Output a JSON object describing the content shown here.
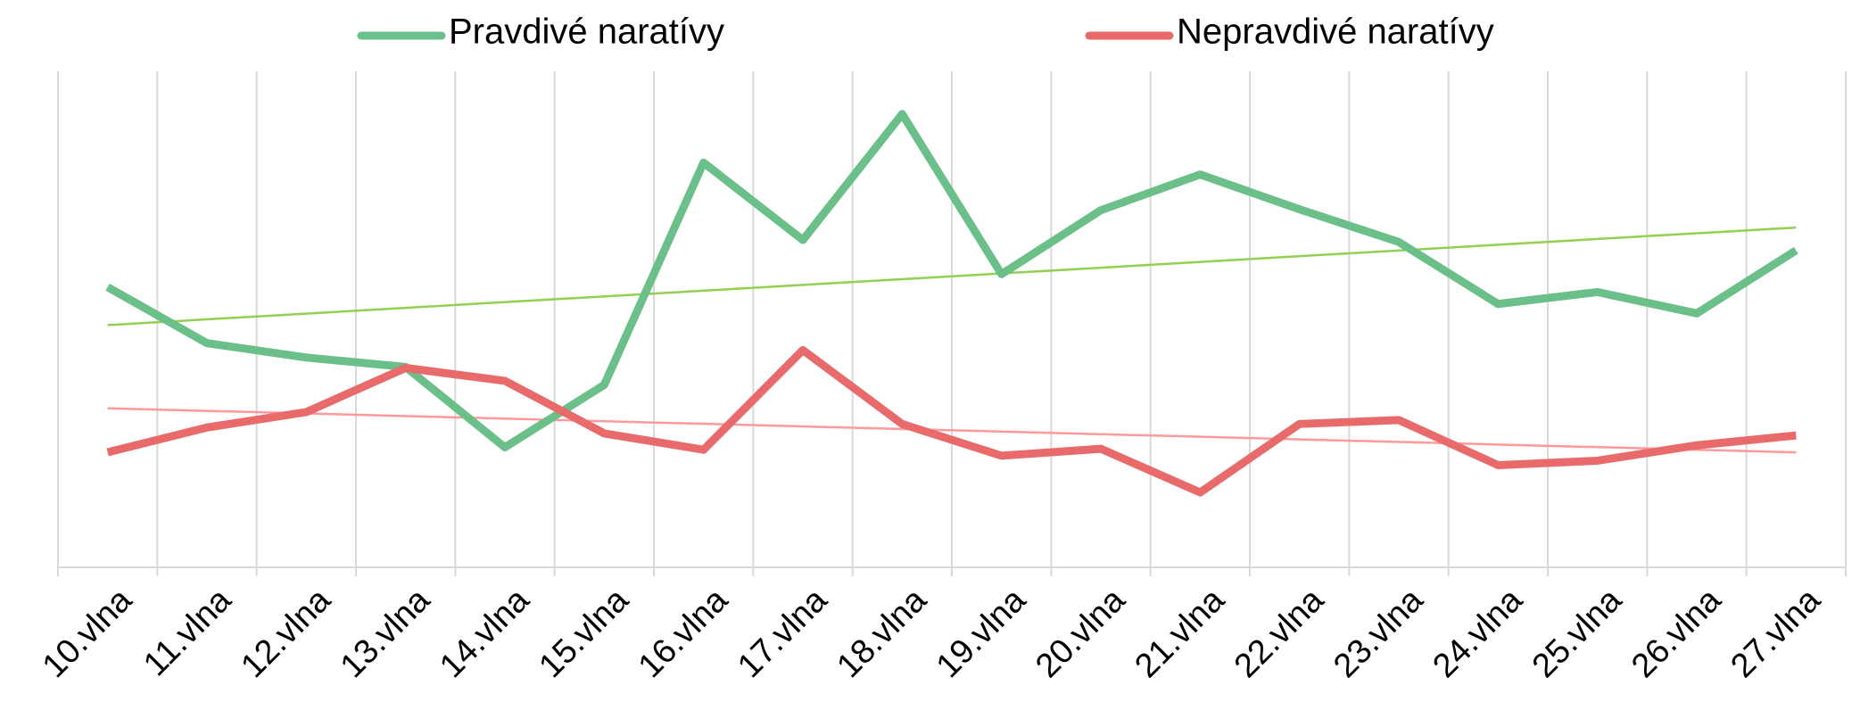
{
  "chart_data": {
    "type": "line",
    "categories": [
      "10.vlna",
      "11.vlna",
      "12.vlna",
      "13.vlna",
      "14.vlna",
      "15.vlna",
      "16.vlna",
      "17.vlna",
      "18.vlna",
      "19.vlna",
      "20.vlna",
      "21.vlna",
      "22.vlna",
      "23.vlna",
      "24.vlna",
      "25.vlna",
      "26.vlna",
      "27.vlna"
    ],
    "series": [
      {
        "name": "Pravdivé naratívy",
        "color": "#6bbf89",
        "trend_color": "#92d050",
        "values": [
          56.5,
          45.2,
          42.3,
          40.4,
          24.2,
          36.8,
          81.6,
          66.0,
          91.4,
          59.1,
          72.0,
          79.2,
          72.2,
          65.6,
          53.1,
          55.5,
          51.2,
          63.9
        ]
      },
      {
        "name": "Nepravdivé naratívy",
        "color": "#e86a6a",
        "trend_color": "#ff9a9a",
        "values": [
          23.2,
          28.2,
          31.3,
          40.2,
          37.6,
          27.0,
          23.7,
          43.8,
          28.9,
          22.5,
          23.9,
          15.1,
          28.9,
          29.7,
          20.6,
          21.5,
          24.6,
          26.6
        ]
      }
    ],
    "ylim": [
      0,
      100
    ],
    "grid": true,
    "trendline": true,
    "legend": "top"
  }
}
